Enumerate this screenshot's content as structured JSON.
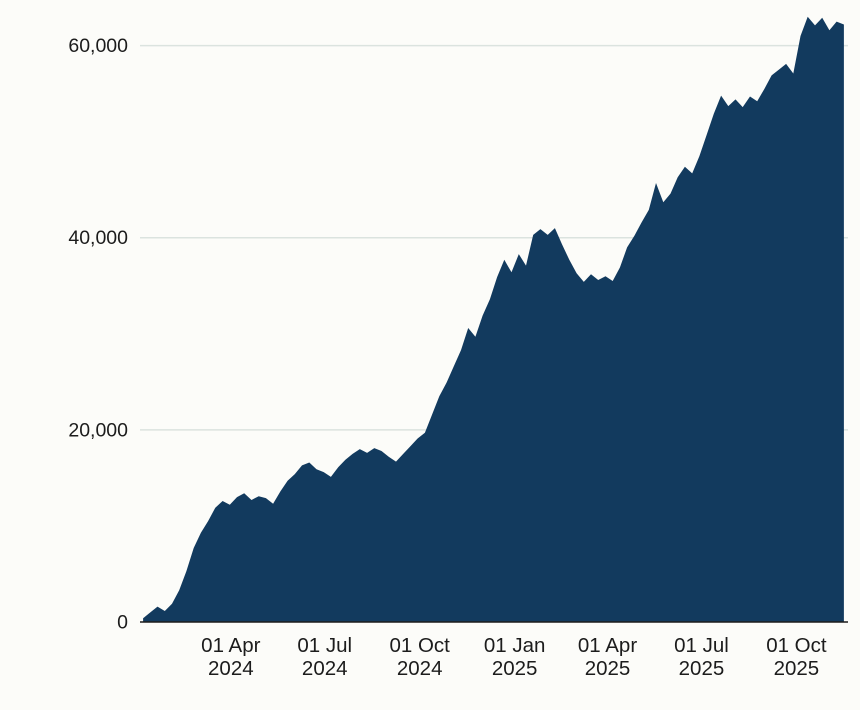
{
  "chart_data": {
    "type": "area",
    "title": "",
    "xlabel": "",
    "ylabel": "",
    "grid": "horizontal",
    "legend": "none",
    "area_color": "#123a5e",
    "background_color": "#fcfcf9",
    "gridline_color": "#dbe3df",
    "baseline_color": "#1c1c1c",
    "text_color": "#1c1c1c",
    "ylim": [
      0,
      63500
    ],
    "x_domain": [
      "2024-01-04",
      "2025-11-20"
    ],
    "yticks": [
      {
        "value": 0,
        "label": "0"
      },
      {
        "value": 20000,
        "label": "20,000"
      },
      {
        "value": 40000,
        "label": "40,000"
      },
      {
        "value": 60000,
        "label": "60,000"
      }
    ],
    "xticks": [
      {
        "date": "2024-04-01",
        "line1": "01 Apr",
        "line2": "2024"
      },
      {
        "date": "2024-07-01",
        "line1": "01 Jul",
        "line2": "2024"
      },
      {
        "date": "2024-10-01",
        "line1": "01 Oct",
        "line2": "2024"
      },
      {
        "date": "2025-01-01",
        "line1": "01 Jan",
        "line2": "2025"
      },
      {
        "date": "2025-04-01",
        "line1": "01 Apr",
        "line2": "2025"
      },
      {
        "date": "2025-07-01",
        "line1": "01 Jul",
        "line2": "2025"
      },
      {
        "date": "2025-10-01",
        "line1": "01 Oct",
        "line2": "2025"
      }
    ],
    "points": [
      [
        "2024-01-07",
        400
      ],
      [
        "2024-01-14",
        1000
      ],
      [
        "2024-01-21",
        1600
      ],
      [
        "2024-01-28",
        1150
      ],
      [
        "2024-02-04",
        1900
      ],
      [
        "2024-02-11",
        3300
      ],
      [
        "2024-02-18",
        5300
      ],
      [
        "2024-02-25",
        7700
      ],
      [
        "2024-03-03",
        9300
      ],
      [
        "2024-03-10",
        10500
      ],
      [
        "2024-03-17",
        11900
      ],
      [
        "2024-03-24",
        12600
      ],
      [
        "2024-03-31",
        12200
      ],
      [
        "2024-04-07",
        13000
      ],
      [
        "2024-04-14",
        13400
      ],
      [
        "2024-04-21",
        12700
      ],
      [
        "2024-04-28",
        13100
      ],
      [
        "2024-05-05",
        12900
      ],
      [
        "2024-05-12",
        12300
      ],
      [
        "2024-05-19",
        13600
      ],
      [
        "2024-05-26",
        14700
      ],
      [
        "2024-06-02",
        15400
      ],
      [
        "2024-06-09",
        16300
      ],
      [
        "2024-06-16",
        16600
      ],
      [
        "2024-06-23",
        15900
      ],
      [
        "2024-06-30",
        15600
      ],
      [
        "2024-07-07",
        15100
      ],
      [
        "2024-07-14",
        16100
      ],
      [
        "2024-07-21",
        16900
      ],
      [
        "2024-07-28",
        17500
      ],
      [
        "2024-08-04",
        18000
      ],
      [
        "2024-08-11",
        17600
      ],
      [
        "2024-08-18",
        18100
      ],
      [
        "2024-08-25",
        17800
      ],
      [
        "2024-09-01",
        17200
      ],
      [
        "2024-09-08",
        16700
      ],
      [
        "2024-09-15",
        17500
      ],
      [
        "2024-09-22",
        18300
      ],
      [
        "2024-09-29",
        19100
      ],
      [
        "2024-10-06",
        19700
      ],
      [
        "2024-10-13",
        21600
      ],
      [
        "2024-10-20",
        23500
      ],
      [
        "2024-10-27",
        24900
      ],
      [
        "2024-11-03",
        26600
      ],
      [
        "2024-11-10",
        28300
      ],
      [
        "2024-11-17",
        30600
      ],
      [
        "2024-11-24",
        29700
      ],
      [
        "2024-12-01",
        31900
      ],
      [
        "2024-12-08",
        33600
      ],
      [
        "2024-12-15",
        35900
      ],
      [
        "2024-12-22",
        37700
      ],
      [
        "2024-12-29",
        36400
      ],
      [
        "2025-01-05",
        38300
      ],
      [
        "2025-01-12",
        37100
      ],
      [
        "2025-01-19",
        40300
      ],
      [
        "2025-01-26",
        40900
      ],
      [
        "2025-02-02",
        40300
      ],
      [
        "2025-02-09",
        41000
      ],
      [
        "2025-02-16",
        39300
      ],
      [
        "2025-02-23",
        37700
      ],
      [
        "2025-03-02",
        36300
      ],
      [
        "2025-03-09",
        35400
      ],
      [
        "2025-03-16",
        36200
      ],
      [
        "2025-03-23",
        35600
      ],
      [
        "2025-03-30",
        36000
      ],
      [
        "2025-04-06",
        35500
      ],
      [
        "2025-04-13",
        36900
      ],
      [
        "2025-04-20",
        39000
      ],
      [
        "2025-04-27",
        40200
      ],
      [
        "2025-05-04",
        41600
      ],
      [
        "2025-05-11",
        42900
      ],
      [
        "2025-05-18",
        45700
      ],
      [
        "2025-05-25",
        43700
      ],
      [
        "2025-06-01",
        44600
      ],
      [
        "2025-06-08",
        46300
      ],
      [
        "2025-06-15",
        47400
      ],
      [
        "2025-06-22",
        46700
      ],
      [
        "2025-06-29",
        48500
      ],
      [
        "2025-07-06",
        50700
      ],
      [
        "2025-07-13",
        52900
      ],
      [
        "2025-07-20",
        54800
      ],
      [
        "2025-07-27",
        53700
      ],
      [
        "2025-08-03",
        54400
      ],
      [
        "2025-08-10",
        53600
      ],
      [
        "2025-08-17",
        54700
      ],
      [
        "2025-08-24",
        54200
      ],
      [
        "2025-08-31",
        55500
      ],
      [
        "2025-09-07",
        56900
      ],
      [
        "2025-09-14",
        57500
      ],
      [
        "2025-09-21",
        58100
      ],
      [
        "2025-09-28",
        57100
      ],
      [
        "2025-10-05",
        61000
      ],
      [
        "2025-10-12",
        63000
      ],
      [
        "2025-10-19",
        62100
      ],
      [
        "2025-10-26",
        62900
      ],
      [
        "2025-11-02",
        61600
      ],
      [
        "2025-11-09",
        62500
      ],
      [
        "2025-11-16",
        62200
      ]
    ]
  }
}
